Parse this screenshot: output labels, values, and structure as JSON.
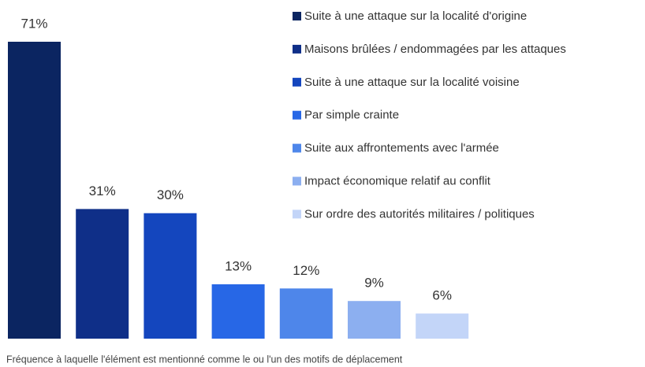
{
  "chart_data": {
    "type": "bar",
    "categories": [
      "Suite à une attaque sur la localité d'origine",
      "Maisons brûlées / endommagées par les attaques",
      "Suite à une attaque sur la localité voisine",
      "Par simple crainte",
      "Suite aux affrontements avec l'armée",
      "Impact économique relatif au conflit",
      "Sur ordre des autorités militaires / politiques"
    ],
    "values": [
      71,
      31,
      30,
      13,
      12,
      9,
      6
    ],
    "value_labels": [
      "71%",
      "31%",
      "30%",
      "13%",
      "12%",
      "9%",
      "6%"
    ],
    "colors": [
      "#0b2561",
      "#0f2f88",
      "#1446be",
      "#2767e6",
      "#4e86ea",
      "#8caff0",
      "#c3d5f8"
    ],
    "x_label": "Fréquence à laquelle l'élément est mentionné comme le ou l'un des motifs de déplacement"
  }
}
